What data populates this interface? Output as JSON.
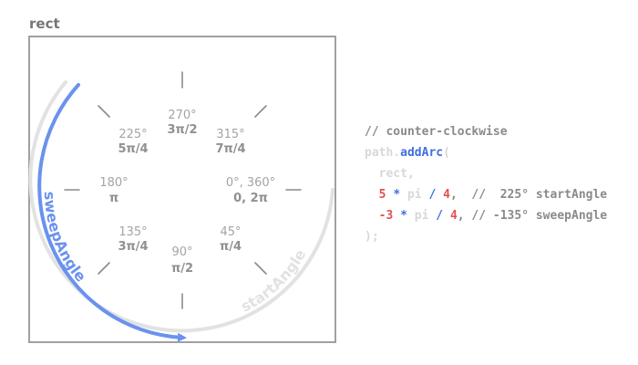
{
  "diagram": {
    "title": "rect",
    "angles": [
      {
        "deg": "270°",
        "rad": "3π/2"
      },
      {
        "deg": "315°",
        "rad": "7π/4"
      },
      {
        "deg": "225°",
        "rad": "5π/4"
      },
      {
        "deg": "180°",
        "rad": "π"
      },
      {
        "deg": "0°, 360°",
        "rad": "0, 2π"
      },
      {
        "deg": "135°",
        "rad": "3π/4"
      },
      {
        "deg": "45°",
        "rad": "π/4"
      },
      {
        "deg": "90°",
        "rad": "π/2"
      }
    ],
    "sweep_label": "sweepAngle",
    "start_label": "startAngle",
    "colors": {
      "frame": "#a0a0a0",
      "tick": "#8a8a8a",
      "sweep_arc": "#6a92ee",
      "start_arc": "#e2e2e2"
    }
  },
  "code": {
    "comment": "// counter-clockwise",
    "obj": "path.",
    "method": "addArc",
    "open_paren": "(",
    "rect_arg": "rect,",
    "l3_n1": "5",
    "l3_mul": "*",
    "l3_pi": "pi",
    "l3_div": "/",
    "l3_n2": "4",
    "l3_rest": ",  //  225° startAngle",
    "l4_n1": "-3",
    "l4_mul": "*",
    "l4_pi": "pi",
    "l4_div": "/",
    "l4_n2": "4",
    "l4_rest": ", // -135° sweepAngle",
    "close": ");"
  }
}
